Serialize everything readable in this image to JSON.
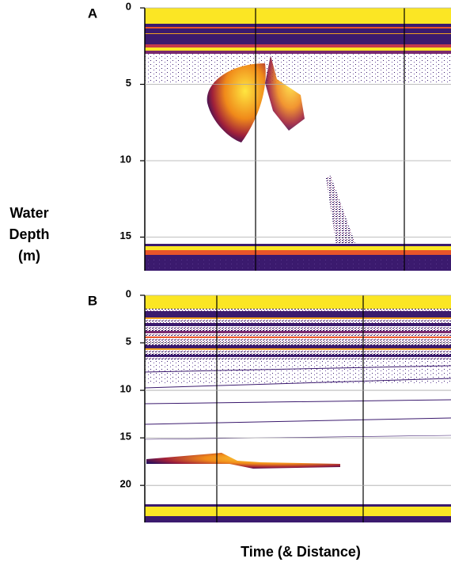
{
  "chart_data": [
    {
      "type": "echogram",
      "panel_label": "A",
      "ylim": [
        0,
        17.2
      ],
      "yticks": [
        0,
        5,
        10,
        15
      ]
    },
    {
      "type": "echogram",
      "panel_label": "B",
      "ylim": [
        0,
        23.9
      ],
      "yticks": [
        0,
        5,
        10,
        15,
        20
      ]
    }
  ],
  "axis_labels": {
    "y": [
      "Water",
      "Depth",
      "(m)"
    ],
    "x": "Time (& Distance)"
  }
}
